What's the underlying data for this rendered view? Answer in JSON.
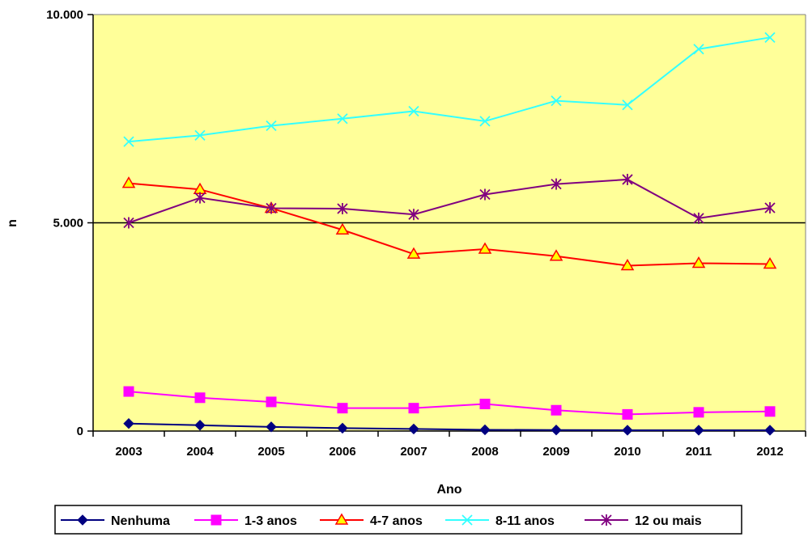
{
  "chart_data": {
    "type": "line",
    "title": "",
    "xlabel": "Ano",
    "ylabel": "n",
    "x": [
      "2003",
      "2004",
      "2005",
      "2006",
      "2007",
      "2008",
      "2009",
      "2010",
      "2011",
      "2012"
    ],
    "ylim": [
      0,
      10000
    ],
    "yticks": [
      0,
      5000,
      10000
    ],
    "ytick_labels": [
      "0",
      "5.000",
      "10.000"
    ],
    "grid": "horizontal major gridlines",
    "legend_position": "bottom",
    "plot_background": "#FFFF99",
    "series": [
      {
        "name": "Nenhuma",
        "color": "#000080",
        "marker": "diamond",
        "values": [
          180,
          140,
          100,
          70,
          50,
          30,
          25,
          20,
          20,
          20
        ]
      },
      {
        "name": "1-3 anos",
        "color": "#FF00FF",
        "marker": "square",
        "values": [
          950,
          800,
          700,
          550,
          550,
          650,
          500,
          400,
          450,
          470
        ]
      },
      {
        "name": "4-7 anos",
        "color": "#FF0000",
        "marker": "triangle",
        "values": [
          5950,
          5800,
          5350,
          4830,
          4250,
          4370,
          4200,
          3970,
          4030,
          4010
        ]
      },
      {
        "name": "8-11 anos",
        "color": "#33FFFF",
        "marker": "x",
        "values": [
          6950,
          7100,
          7330,
          7500,
          7680,
          7440,
          7930,
          7830,
          9170,
          9450
        ]
      },
      {
        "name": "12 ou mais",
        "color": "#800080",
        "marker": "asterisk",
        "values": [
          5000,
          5600,
          5350,
          5340,
          5200,
          5680,
          5930,
          6040,
          5110,
          5360
        ]
      }
    ]
  }
}
